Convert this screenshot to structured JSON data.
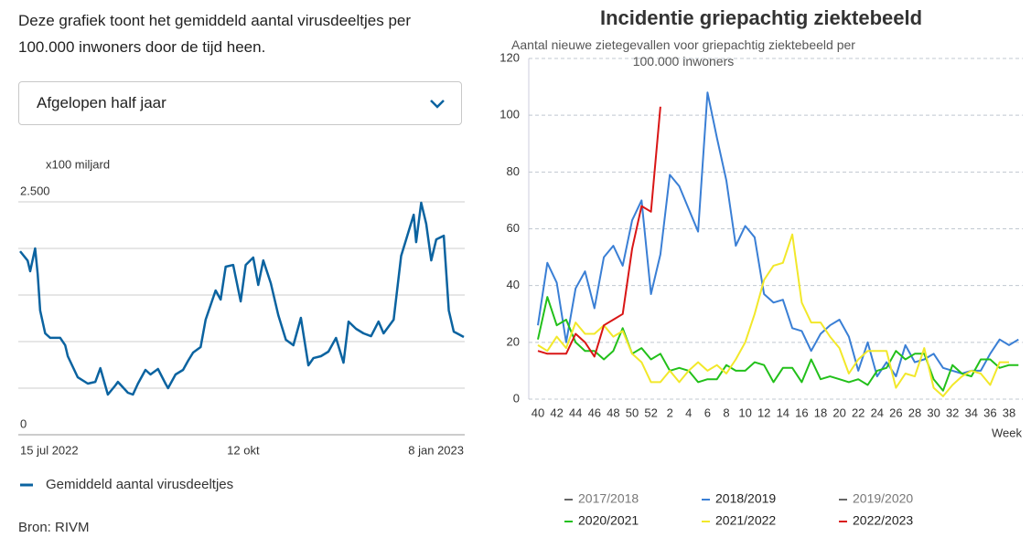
{
  "description": "Deze grafiek toont het gemiddeld aantal virusdeeltjes per 100.000 inwoners door de tijd heen.",
  "dropdown": "Afgelopen half jaar",
  "source": "Bron: RIVM",
  "chart_data": [
    {
      "type": "line",
      "ylabel": "x100 miljard",
      "x": [
        "2022-07-15",
        "2022-07-18",
        "2022-07-19",
        "2022-07-21",
        "2022-07-22",
        "2022-07-23",
        "2022-07-25",
        "2022-07-27",
        "2022-07-31",
        "2022-08-02",
        "2022-08-03",
        "2022-08-07",
        "2022-08-11",
        "2022-08-14",
        "2022-08-16",
        "2022-08-19",
        "2022-08-22",
        "2022-08-23",
        "2022-08-27",
        "2022-08-29",
        "2022-08-31",
        "2022-09-03",
        "2022-09-05",
        "2022-09-08",
        "2022-09-11",
        "2022-09-12",
        "2022-09-15",
        "2022-09-18",
        "2022-09-20",
        "2022-09-22",
        "2022-09-25",
        "2022-09-27",
        "2022-10-01",
        "2022-10-03",
        "2022-10-05",
        "2022-10-08",
        "2022-10-11",
        "2022-10-13",
        "2022-10-16",
        "2022-10-18",
        "2022-10-20",
        "2022-10-23",
        "2022-10-26",
        "2022-10-29",
        "2022-11-01",
        "2022-11-04",
        "2022-11-07",
        "2022-11-09",
        "2022-11-12",
        "2022-11-15",
        "2022-11-18",
        "2022-11-21",
        "2022-11-23",
        "2022-11-26",
        "2022-11-29",
        "2022-12-02",
        "2022-12-05",
        "2022-12-07",
        "2022-12-11",
        "2022-12-14",
        "2022-12-16",
        "2022-12-19",
        "2022-12-20",
        "2022-12-22",
        "2022-12-24",
        "2022-12-26",
        "2022-12-28",
        "2022-12-31",
        "2023-01-02",
        "2023-01-04",
        "2023-01-06",
        "2023-01-08"
      ],
      "series": [
        {
          "name": "Gemiddeld aantal virusdeeltjes",
          "color": "#0b63a0",
          "values": [
            1970,
            1870,
            1755,
            2000,
            1725,
            1333,
            1088,
            1040,
            1040,
            960,
            843,
            617,
            549,
            568,
            715,
            431,
            529,
            568,
            451,
            431,
            549,
            696,
            647,
            706,
            549,
            500,
            647,
            696,
            794,
            882,
            941,
            1235,
            1549,
            1451,
            1804,
            1823,
            1431,
            1823,
            1902,
            1608,
            1872,
            1627,
            1284,
            1020,
            961,
            1255,
            745,
            823,
            843,
            892,
            1039,
            774,
            1215,
            1137,
            1088,
            1058,
            1215,
            1088,
            1235,
            1921,
            2097,
            2362,
            2068,
            2490,
            2264,
            1872,
            2097,
            2136,
            1333,
            1107,
            1078,
            1049
          ]
        }
      ],
      "xlim": [
        "2022-07-15",
        "2023-01-08"
      ],
      "xticks": [
        {
          "value": "2022-07-15",
          "label": "15 jul 2022"
        },
        {
          "value": "2022-10-12",
          "label": "12 okt"
        },
        {
          "value": "2023-01-08",
          "label": "8 jan 2023"
        }
      ],
      "ylim": [
        0,
        2500
      ],
      "yticks": [
        0,
        {
          "value": 2500,
          "label": "2.500"
        }
      ],
      "ygrid": [
        0,
        500,
        1000,
        1500,
        2000,
        2500
      ]
    },
    {
      "type": "line",
      "title": "Incidentie griepachtig ziektebeeld",
      "subtitle": "Aantal nieuwe zietegevallen voor griepachtig ziektebeeld per 100.000 inwoners",
      "xlabel": "Week",
      "categories": [
        40,
        null,
        42,
        null,
        44,
        null,
        46,
        null,
        48,
        null,
        50,
        null,
        52,
        null,
        2,
        null,
        4,
        null,
        6,
        null,
        8,
        null,
        10,
        null,
        12,
        null,
        14,
        null,
        16,
        null,
        18,
        null,
        20,
        null,
        22,
        null,
        24,
        null,
        26,
        null,
        28,
        null,
        30,
        null,
        32,
        null,
        34,
        null,
        36,
        null,
        38,
        null
      ],
      "ylim": [
        0,
        120
      ],
      "yticks": [
        0,
        20,
        40,
        60,
        80,
        100,
        120
      ],
      "grid": true,
      "series": [
        {
          "name": "2017/2018",
          "color": "#666666",
          "visible": false,
          "values": [
            null,
            null,
            null,
            null,
            null,
            null,
            null,
            null,
            null,
            null,
            null,
            null,
            null,
            null,
            null,
            null,
            null,
            null,
            null,
            null,
            null,
            null,
            null,
            null,
            null,
            null,
            null,
            null,
            null,
            null,
            null,
            null,
            null,
            null,
            null,
            null,
            null,
            null,
            null,
            null,
            null,
            null,
            null,
            null,
            null,
            null,
            null,
            null,
            null,
            null,
            null,
            null
          ]
        },
        {
          "name": "2018/2019",
          "color": "#3a7fd5",
          "visible": true,
          "values": [
            26,
            48,
            41,
            20,
            39,
            45,
            32,
            50,
            54,
            47,
            63,
            70,
            37,
            51,
            79,
            75,
            67,
            59,
            108,
            92,
            77,
            54,
            61,
            57,
            37,
            34,
            35,
            25,
            24,
            17,
            23,
            26,
            28,
            22,
            10,
            20,
            8,
            13,
            8,
            19,
            13,
            14,
            16,
            11,
            10,
            9,
            10,
            10,
            16,
            21,
            19,
            21
          ]
        },
        {
          "name": "2019/2020",
          "color": "#666666",
          "visible": false,
          "values": [
            null,
            null,
            null,
            null,
            null,
            null,
            null,
            null,
            null,
            null,
            null,
            null,
            null,
            null,
            null,
            null,
            null,
            null,
            null,
            null,
            null,
            null,
            null,
            null,
            null,
            null,
            null,
            null,
            null,
            null,
            null,
            null,
            null,
            null,
            null,
            null,
            null,
            null,
            null,
            null,
            null,
            null,
            null,
            null,
            null,
            null,
            null,
            null,
            null,
            null,
            null,
            null
          ]
        },
        {
          "name": "2020/2021",
          "color": "#22c01a",
          "visible": true,
          "values": [
            21,
            36,
            26,
            28,
            20,
            17,
            17,
            14,
            17,
            25,
            16,
            18,
            14,
            16,
            10,
            11,
            10,
            6,
            7,
            7,
            12,
            10,
            10,
            13,
            12,
            6,
            11,
            11,
            6,
            14,
            7,
            8,
            7,
            6,
            7,
            5,
            10,
            11,
            17,
            14,
            16,
            16,
            7,
            3,
            12,
            9,
            8,
            14,
            14,
            11,
            12,
            12
          ]
        },
        {
          "name": "2021/2022",
          "color": "#f2e82a",
          "visible": true,
          "values": [
            19,
            17,
            22,
            18,
            27,
            23,
            23,
            26,
            22,
            24,
            16,
            13,
            6,
            6,
            10,
            6,
            10,
            13,
            10,
            12,
            9,
            14,
            20,
            30,
            42,
            47,
            48,
            58,
            34,
            27,
            27,
            22,
            18,
            9,
            14,
            17,
            17,
            17,
            4,
            9,
            8,
            18,
            4,
            1,
            5,
            8,
            10,
            9,
            5,
            13,
            13,
            null
          ]
        },
        {
          "name": "2022/2023",
          "color": "#d91616",
          "visible": true,
          "values": [
            17,
            16,
            16,
            16,
            23,
            20,
            15,
            26,
            28,
            30,
            53,
            68,
            66,
            103,
            null,
            null,
            null,
            null,
            null,
            null,
            null,
            null,
            null,
            null,
            null,
            null,
            null,
            null,
            null,
            null,
            null,
            null,
            null,
            null,
            null,
            null,
            null,
            null,
            null,
            null,
            null,
            null,
            null,
            null,
            null,
            null,
            null,
            null,
            null,
            null,
            null,
            null
          ]
        }
      ]
    }
  ]
}
